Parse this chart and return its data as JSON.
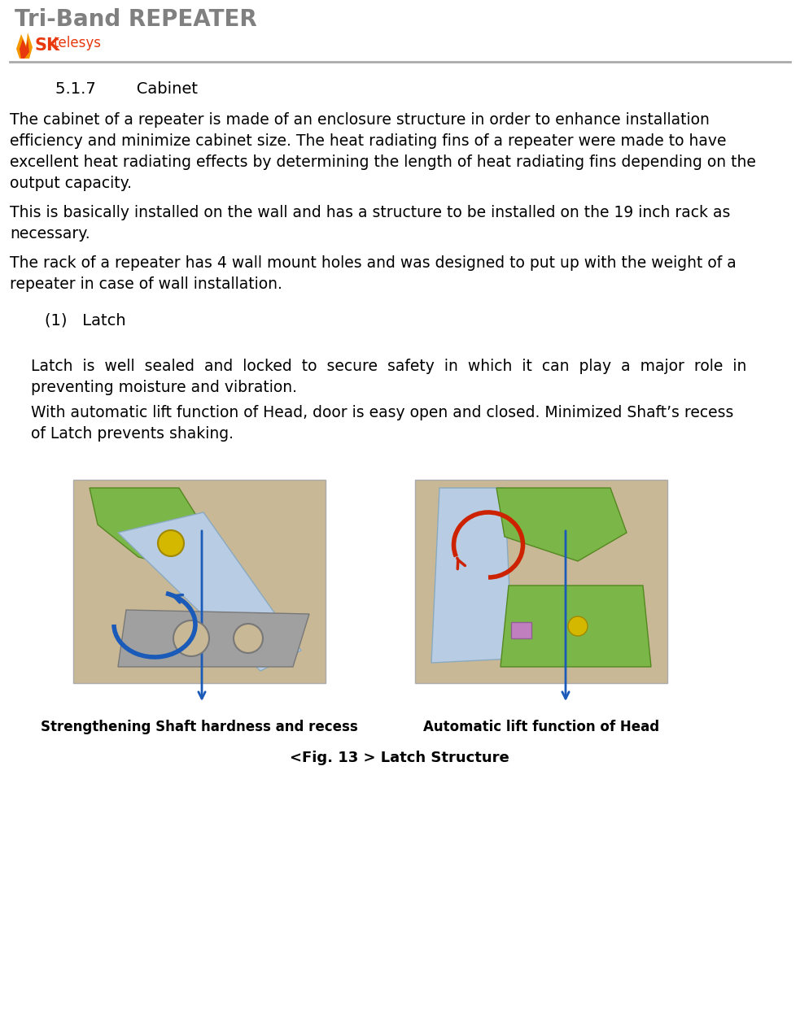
{
  "title": "Tri-Band REPEATER",
  "title_color": "#808080",
  "title_fontsize": 20,
  "logo_sk_color": "#e8380d",
  "logo_telesys_color": "#e8380d",
  "header_line_color": "#aaaaaa",
  "section_heading": "5.1.7        Cabinet",
  "section_heading_fontsize": 14,
  "body_fontsize": 13.5,
  "body_text_1a": "The cabinet of a repeater is made of an enclosure structure in order to enhance installation",
  "body_text_1b": "efficiency and minimize cabinet size. The heat radiating fins of a repeater were made to have",
  "body_text_1c": "excellent heat radiating effects by determining the length of heat radiating fins depending on the",
  "body_text_1d": "output capacity.",
  "body_text_2a": "This is basically installed on the wall and has a structure to be installed on the 19 inch rack as",
  "body_text_2b": "necessary.",
  "body_text_3a": "The rack of a repeater has 4 wall mount holes and was designed to put up with the weight of a",
  "body_text_3b": "repeater in case of wall installation.",
  "sub_heading": "(1)   Latch",
  "sub_heading_fontsize": 14,
  "body_text_4a": "Latch  is  well  sealed  and  locked  to  secure  safety  in  which  it  can  play  a  major  role  in",
  "body_text_4b": "preventing moisture and vibration.",
  "body_text_5a": "With automatic lift function of Head, door is easy open and closed. Minimized Shaft’s recess",
  "body_text_5b": "of Latch prevents shaking.",
  "caption_left": "Strengthening Shaft hardness and recess",
  "caption_right": "Automatic lift function of Head",
  "caption_fontsize": 12,
  "fig_caption": "<Fig. 13 > Latch Structure",
  "fig_caption_fontsize": 13,
  "background_color": "#ffffff",
  "text_color": "#000000",
  "img_bg_color": "#c8b896",
  "img_border_color": "#aaaaaa",
  "blue_arrow_color": "#1a5ab8",
  "red_arrow_color": "#cc2200",
  "green_color": "#7ab648",
  "light_blue_color": "#b8cce4",
  "gray_color": "#a0a0a0",
  "yellow_color": "#d4b800"
}
